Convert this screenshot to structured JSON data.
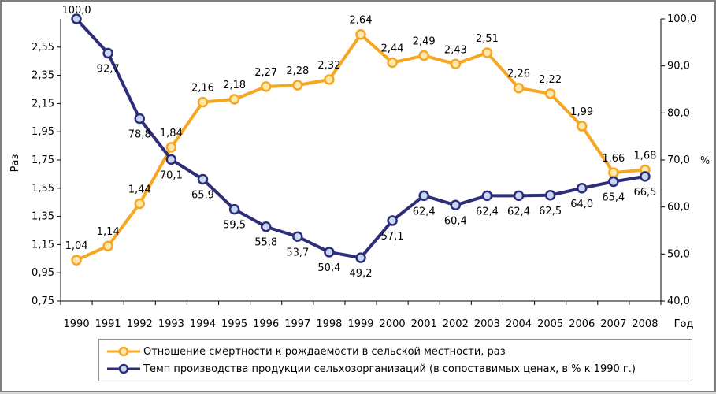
{
  "chart_data": {
    "type": "line",
    "categories": [
      "1990",
      "1991",
      "1992",
      "1993",
      "1994",
      "1995",
      "1996",
      "1997",
      "1998",
      "1999",
      "2000",
      "2001",
      "2002",
      "2003",
      "2004",
      "2005",
      "2006",
      "2007",
      "2008"
    ],
    "xlabel": "Год",
    "y_left": {
      "label": "Раз",
      "min": 0.75,
      "max": 2.75,
      "ticks": [
        "0,75",
        "0,95",
        "1,15",
        "1,35",
        "1,55",
        "1,75",
        "1,95",
        "2,15",
        "2,35",
        "2,55"
      ],
      "tick_values": [
        0.75,
        0.95,
        1.15,
        1.35,
        1.55,
        1.75,
        1.95,
        2.15,
        2.35,
        2.55
      ]
    },
    "y_right": {
      "label": "%",
      "min": 40,
      "max": 100,
      "ticks": [
        "40,0",
        "50,0",
        "60,0",
        "70,0",
        "80,0",
        "90,0",
        "100,0"
      ],
      "tick_values": [
        40,
        50,
        60,
        70,
        80,
        90,
        100
      ]
    },
    "series": [
      {
        "name": "Отношение смертности к рождаемости в сельской местности, раз",
        "axis": "left",
        "color": "#f5a623",
        "marker_fill": "#fde9b0",
        "values": [
          1.04,
          1.14,
          1.44,
          1.84,
          2.16,
          2.18,
          2.27,
          2.28,
          2.32,
          2.64,
          2.44,
          2.49,
          2.43,
          2.51,
          2.26,
          2.22,
          1.99,
          1.66,
          1.68
        ],
        "labels": [
          "1,04",
          "1,14",
          "1,44",
          "1,84",
          "2,16",
          "2,18",
          "2,27",
          "2,28",
          "2,32",
          "2,64",
          "2,44",
          "2,49",
          "2,43",
          "2,51",
          "2,26",
          "2,22",
          "1,99",
          "1,66",
          "1,68"
        ]
      },
      {
        "name": "Темп производства продукции сельхозорганизаций (в сопоставимых ценах, в % к 1990 г.)",
        "axis": "right",
        "color": "#2e2d7a",
        "marker_fill": "#c6d9f1",
        "values": [
          100.0,
          92.7,
          78.8,
          70.1,
          65.9,
          59.5,
          55.8,
          53.7,
          50.4,
          49.2,
          57.1,
          62.4,
          60.4,
          62.4,
          62.4,
          62.5,
          64.0,
          65.4,
          66.5
        ],
        "labels": [
          "100,0",
          "92,7",
          "78,8",
          "70,1",
          "65,9",
          "59,5",
          "55,8",
          "53,7",
          "50,4",
          "49,2",
          "57,1",
          "62,4",
          "60,4",
          "62,4",
          "62,4",
          "62,5",
          "64,0",
          "65,4",
          "66,5"
        ]
      }
    ]
  }
}
